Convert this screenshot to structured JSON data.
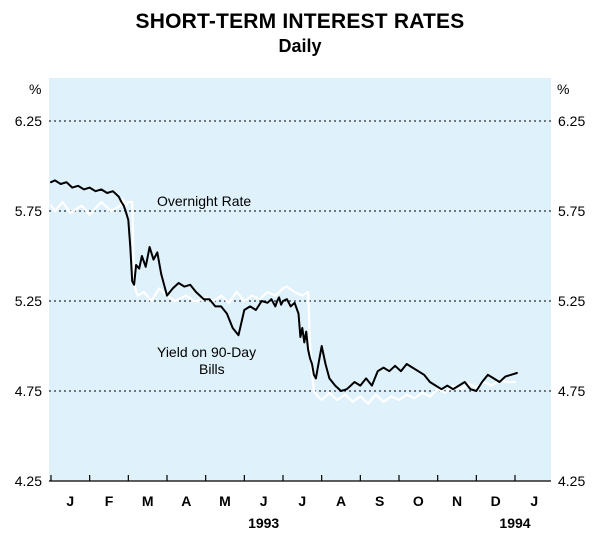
{
  "chart_data": {
    "type": "line",
    "title": "SHORT-TERM INTEREST RATES",
    "subtitle": "Daily",
    "ylabel_left": "%",
    "ylabel_right": "%",
    "ylim": [
      4.25,
      6.25
    ],
    "yticks": [
      {
        "value": 6.25,
        "label": "6.25"
      },
      {
        "value": 5.75,
        "label": "5.75"
      },
      {
        "value": 5.25,
        "label": "5.25"
      },
      {
        "value": 4.75,
        "label": "4.75"
      },
      {
        "value": 4.25,
        "label": "4.25"
      }
    ],
    "months": [
      "J",
      "F",
      "M",
      "A",
      "M",
      "J",
      "J",
      "A",
      "S",
      "O",
      "N",
      "D",
      "J"
    ],
    "year_labels": [
      {
        "label": "1993",
        "at_month": 5.5
      },
      {
        "label": "1994",
        "at_month": 12
      }
    ],
    "colors": {
      "background": "#dff1fb",
      "overnight": "#ffffff",
      "bills": "#000000",
      "grid": "#000000"
    },
    "series": [
      {
        "name": "Overnight Rate",
        "color": "#ffffff",
        "x": [
          0.0,
          0.1,
          0.3,
          0.5,
          0.8,
          1.0,
          1.3,
          1.55,
          1.8,
          1.85,
          1.95,
          2.0,
          2.1,
          2.15,
          2.2,
          2.25,
          2.4,
          2.6,
          2.8,
          3.0,
          3.2,
          3.5,
          3.7,
          3.8,
          4.0,
          4.2,
          4.4,
          4.6,
          4.8,
          5.0,
          5.2,
          5.4,
          5.6,
          5.8,
          6.0,
          6.1,
          6.3,
          6.5,
          6.65,
          6.7,
          6.75,
          6.8,
          6.9,
          7.0,
          7.2,
          7.4,
          7.6,
          7.8,
          8.0,
          8.2,
          8.4,
          8.6,
          8.8,
          9.0,
          9.2,
          9.4,
          9.6,
          9.8,
          10.0,
          10.2,
          10.4,
          10.6,
          10.8,
          11.0,
          11.2,
          11.4,
          11.6,
          11.8,
          12.0
        ],
        "values": [
          5.78,
          5.75,
          5.8,
          5.74,
          5.78,
          5.73,
          5.8,
          5.75,
          5.78,
          5.82,
          5.78,
          5.8,
          5.8,
          5.35,
          5.3,
          5.28,
          5.3,
          5.25,
          5.32,
          5.28,
          5.25,
          5.28,
          5.25,
          5.25,
          5.27,
          5.25,
          5.28,
          5.24,
          5.3,
          5.25,
          5.28,
          5.26,
          5.3,
          5.28,
          5.32,
          5.33,
          5.3,
          5.28,
          5.3,
          5.0,
          4.85,
          4.75,
          4.72,
          4.7,
          4.74,
          4.7,
          4.73,
          4.69,
          4.72,
          4.68,
          4.73,
          4.69,
          4.72,
          4.7,
          4.73,
          4.71,
          4.74,
          4.72,
          4.76,
          4.74,
          4.78,
          4.76,
          4.79,
          4.77,
          4.8,
          4.78,
          4.81,
          4.8,
          4.8
        ]
      },
      {
        "name": "Yield on 90-Day Bills",
        "color": "#000000",
        "x": [
          0.0,
          0.1,
          0.25,
          0.4,
          0.55,
          0.7,
          0.85,
          1.0,
          1.15,
          1.3,
          1.45,
          1.6,
          1.75,
          1.82,
          1.88,
          1.93,
          2.0,
          2.05,
          2.1,
          2.15,
          2.2,
          2.28,
          2.35,
          2.45,
          2.55,
          2.65,
          2.75,
          2.85,
          3.0,
          3.15,
          3.3,
          3.45,
          3.6,
          3.75,
          3.85,
          3.95,
          4.1,
          4.25,
          4.4,
          4.55,
          4.7,
          4.85,
          5.0,
          5.15,
          5.3,
          5.45,
          5.6,
          5.7,
          5.8,
          5.85,
          5.9,
          5.95,
          6.0,
          6.1,
          6.2,
          6.3,
          6.4,
          6.45,
          6.5,
          6.55,
          6.6,
          6.65,
          6.7,
          6.75,
          6.8,
          6.85,
          6.9,
          7.0,
          7.1,
          7.2,
          7.35,
          7.5,
          7.65,
          7.75,
          7.85,
          8.0,
          8.15,
          8.3,
          8.45,
          8.6,
          8.75,
          8.9,
          9.05,
          9.2,
          9.35,
          9.5,
          9.65,
          9.8,
          9.95,
          10.1,
          10.25,
          10.4,
          10.55,
          10.7,
          10.85,
          11.0,
          11.15,
          11.3,
          11.45,
          11.6,
          11.75,
          11.9,
          12.05
        ],
        "values": [
          5.91,
          5.92,
          5.9,
          5.91,
          5.88,
          5.89,
          5.87,
          5.88,
          5.86,
          5.87,
          5.85,
          5.86,
          5.83,
          5.8,
          5.78,
          5.75,
          5.7,
          5.55,
          5.36,
          5.34,
          5.45,
          5.43,
          5.5,
          5.44,
          5.55,
          5.48,
          5.52,
          5.4,
          5.28,
          5.32,
          5.35,
          5.33,
          5.34,
          5.3,
          5.28,
          5.26,
          5.26,
          5.22,
          5.22,
          5.18,
          5.1,
          5.06,
          5.2,
          5.22,
          5.2,
          5.25,
          5.24,
          5.26,
          5.22,
          5.25,
          5.27,
          5.23,
          5.25,
          5.26,
          5.22,
          5.24,
          5.18,
          5.05,
          5.1,
          5.02,
          5.08,
          4.98,
          4.93,
          4.9,
          4.84,
          4.82,
          4.88,
          5.0,
          4.9,
          4.82,
          4.78,
          4.75,
          4.76,
          4.78,
          4.8,
          4.78,
          4.82,
          4.78,
          4.86,
          4.88,
          4.86,
          4.89,
          4.86,
          4.9,
          4.88,
          4.86,
          4.84,
          4.8,
          4.78,
          4.76,
          4.78,
          4.76,
          4.78,
          4.8,
          4.76,
          4.75,
          4.8,
          4.84,
          4.82,
          4.8,
          4.83,
          4.84,
          4.85
        ]
      }
    ],
    "annotations": [
      {
        "text": "Overnight Rate",
        "series": "Overnight Rate"
      },
      {
        "text": "Yield on 90-Day Bills",
        "series": "Yield on 90-Day Bills",
        "lines": [
          "Yield on 90-Day",
          "Bills"
        ]
      }
    ]
  }
}
